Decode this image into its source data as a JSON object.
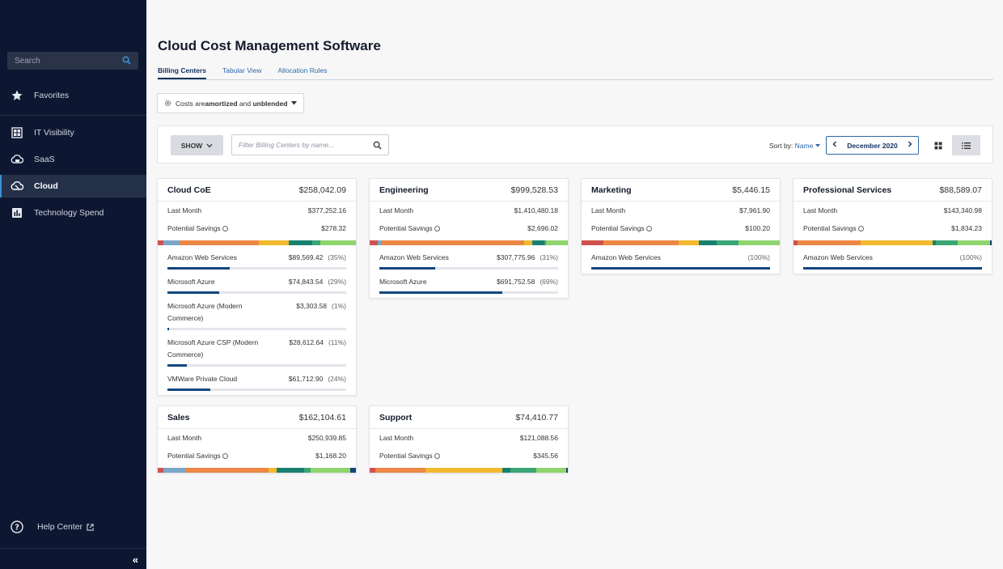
{
  "sidebar": {
    "search_placeholder": "Search",
    "items": [
      {
        "label": "Favorites"
      },
      {
        "label": "IT Visibility"
      },
      {
        "label": "SaaS"
      },
      {
        "label": "Cloud"
      },
      {
        "label": "Technology Spend"
      }
    ],
    "help_label": "Help Center",
    "collapse_label": "«"
  },
  "page": {
    "title": "Cloud Cost Management Software",
    "tabs": [
      {
        "label": "Billing Centers"
      },
      {
        "label": "Tabular View"
      },
      {
        "label": "Allocation Rules"
      }
    ],
    "cost_toggle": {
      "prefix": "Costs are ",
      "amortized": "amortized",
      "middle": " and ",
      "unblended": "unblended"
    }
  },
  "toolbar": {
    "show_label": "SHOW",
    "filter_placeholder": "Filter Billing Centers by name...",
    "sort_prefix": "Sort by: ",
    "sort_value": "Name",
    "date": "December 2020"
  },
  "colors": {
    "red": "#d0524d",
    "lightblue": "#7ba6c9",
    "orange": "#ec8744",
    "yellow": "#f2b92f",
    "teal": "#19806f",
    "green": "#3aa676",
    "lightgreen": "#8fd46c",
    "navy": "#12467e"
  },
  "cards": [
    {
      "name": "Cloud CoE",
      "total": "$258,042.09",
      "last_month_label": "Last Month",
      "last_month": "$377,252.16",
      "savings_label": "Potential Savings",
      "savings": "$278.32",
      "bar": [
        [
          "red",
          3
        ],
        [
          "lightblue",
          8
        ],
        [
          "orange",
          40
        ],
        [
          "yellow",
          15
        ],
        [
          "teal",
          12
        ],
        [
          "green",
          4
        ],
        [
          "lightgreen",
          18
        ]
      ],
      "vendors": [
        {
          "name": "Amazon Web Services",
          "value": "$89,569.42",
          "pct": "(35%)",
          "share": 0.35
        },
        {
          "name": "Microsoft Azure",
          "value": "$74,843.54",
          "pct": "(29%)",
          "share": 0.29
        },
        {
          "name": "Microsoft Azure (Modern Commerce)",
          "value": "$3,303.58",
          "pct": "(1%)",
          "share": 0.01
        },
        {
          "name": "Microsoft Azure CSP (Modern Commerce)",
          "value": "$28,612.64",
          "pct": "(11%)",
          "share": 0.11
        },
        {
          "name": "VMWare Private Cloud",
          "value": "$61,712.90",
          "pct": "(24%)",
          "share": 0.24
        }
      ]
    },
    {
      "name": "Engineering",
      "total": "$999,528.53",
      "last_month_label": "Last Month",
      "last_month": "$1,410,480.18",
      "savings_label": "Potential Savings",
      "savings": "$2,696.02",
      "bar": [
        [
          "red",
          4
        ],
        [
          "lightblue",
          2
        ],
        [
          "orange",
          72
        ],
        [
          "yellow",
          4
        ],
        [
          "teal",
          6
        ],
        [
          "green",
          1
        ],
        [
          "lightgreen",
          11
        ]
      ],
      "vendors": [
        {
          "name": "Amazon Web Services",
          "value": "$307,775.96",
          "pct": "(31%)",
          "share": 0.31
        },
        {
          "name": "Microsoft Azure",
          "value": "$691,752.58",
          "pct": "(69%)",
          "share": 0.69
        }
      ]
    },
    {
      "name": "Marketing",
      "total": "$5,446.15",
      "last_month_label": "Last Month",
      "last_month": "$7,961.90",
      "savings_label": "Potential Savings",
      "savings": "$100.20",
      "bar": [
        [
          "red",
          11
        ],
        [
          "orange",
          38
        ],
        [
          "yellow",
          10
        ],
        [
          "teal",
          9
        ],
        [
          "green",
          11
        ],
        [
          "lightgreen",
          21
        ]
      ],
      "vendors": [
        {
          "name": "Amazon Web Services",
          "value": "",
          "pct": "(100%)",
          "share": 1.0
        }
      ]
    },
    {
      "name": "Professional Services",
      "total": "$88,589.07",
      "last_month_label": "Last Month",
      "last_month": "$143,340.98",
      "savings_label": "Potential Savings",
      "savings": "$1,834.23",
      "bar": [
        [
          "red",
          2
        ],
        [
          "orange",
          32
        ],
        [
          "yellow",
          36
        ],
        [
          "teal",
          2
        ],
        [
          "green",
          11
        ],
        [
          "lightgreen",
          16
        ],
        [
          "navy",
          1
        ]
      ],
      "vendors": [
        {
          "name": "Amazon Web Services",
          "value": "",
          "pct": "(100%)",
          "share": 1.0
        }
      ]
    },
    {
      "name": "Sales",
      "total": "$162,104.61",
      "last_month_label": "Last Month",
      "last_month": "$250,939.85",
      "savings_label": "Potential Savings",
      "savings": "$1,168.20",
      "bar": [
        [
          "red",
          3
        ],
        [
          "lightblue",
          11
        ],
        [
          "orange",
          42
        ],
        [
          "yellow",
          4
        ],
        [
          "teal",
          14
        ],
        [
          "green",
          3
        ],
        [
          "lightgreen",
          20
        ],
        [
          "navy",
          3
        ]
      ],
      "vendors": []
    },
    {
      "name": "Support",
      "total": "$74,410.77",
      "last_month_label": "Last Month",
      "last_month": "$121,088.56",
      "savings_label": "Potential Savings",
      "savings": "$345.56",
      "bar": [
        [
          "red",
          3
        ],
        [
          "orange",
          25
        ],
        [
          "yellow",
          39
        ],
        [
          "teal",
          4
        ],
        [
          "green",
          13
        ],
        [
          "lightgreen",
          15
        ],
        [
          "navy",
          1
        ]
      ],
      "vendors": []
    }
  ]
}
